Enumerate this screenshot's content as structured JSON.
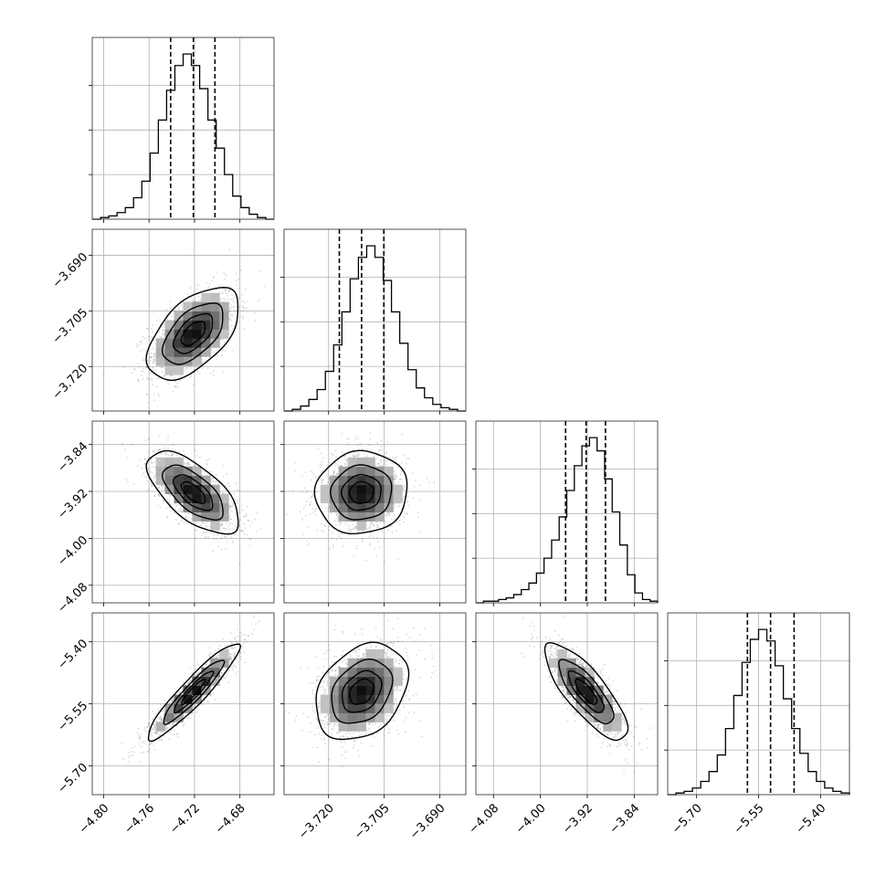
{
  "chart_data": {
    "type": "corner",
    "parameters": [
      {
        "name": "",
        "range": [
          -4.81,
          -4.65
        ],
        "ticks": [
          -4.8,
          -4.76,
          -4.72,
          -4.68
        ],
        "tick_labels": [
          "−4.80",
          "−4.76",
          "−4.72",
          "−4.68"
        ],
        "quantiles": [
          -4.741,
          -4.721,
          -4.702
        ],
        "histogram": [
          0,
          1,
          2,
          4,
          7,
          13,
          23,
          40,
          60,
          78,
          93,
          100,
          93,
          79,
          60,
          43,
          27,
          14,
          7,
          3,
          1,
          0
        ]
      },
      {
        "name": "",
        "range": [
          -3.732,
          -3.683
        ],
        "ticks": [
          -3.72,
          -3.705,
          -3.69
        ],
        "tick_labels": [
          "−3.720",
          "−3.705",
          "−3.690"
        ],
        "quantiles": [
          -3.7171,
          -3.7111,
          -3.7051
        ],
        "histogram": [
          0,
          1,
          3,
          7,
          13,
          24,
          40,
          60,
          80,
          93,
          100,
          93,
          79,
          60,
          41,
          25,
          14,
          8,
          4,
          2,
          1,
          0
        ]
      },
      {
        "name": "",
        "range": [
          -4.11,
          -3.8
        ],
        "ticks": [
          -4.08,
          -4.0,
          -3.92,
          -3.84
        ],
        "tick_labels": [
          "−4.08",
          "−4.00",
          "−3.92",
          "−3.84"
        ],
        "quantiles": [
          -3.957,
          -3.922,
          -3.889
        ],
        "histogram": [
          0,
          1,
          1,
          2,
          3,
          5,
          8,
          12,
          18,
          27,
          38,
          52,
          68,
          83,
          95,
          100,
          92,
          75,
          55,
          35,
          17,
          6,
          2,
          1
        ]
      },
      {
        "name": "",
        "range": [
          -5.77,
          -5.33
        ],
        "ticks": [
          -5.7,
          -5.55,
          -5.4
        ],
        "tick_labels": [
          "−5.70",
          "−5.55",
          "−5.40"
        ],
        "quantiles": [
          -5.577,
          -5.521,
          -5.464
        ],
        "histogram": [
          0,
          1,
          2,
          4,
          8,
          14,
          24,
          40,
          60,
          80,
          94,
          100,
          93,
          78,
          58,
          40,
          25,
          14,
          8,
          4,
          2,
          1
        ]
      }
    ],
    "correlations": [
      [
        1.0,
        0.55,
        -0.65,
        0.93
      ],
      [
        0.55,
        1.0,
        0.05,
        0.3
      ],
      [
        -0.65,
        0.05,
        1.0,
        -0.8
      ],
      [
        0.93,
        0.3,
        -0.8,
        1.0
      ]
    ],
    "contour_levels_sigma": [
      0.5,
      1.0,
      1.5,
      2.0
    ],
    "grid": true
  }
}
